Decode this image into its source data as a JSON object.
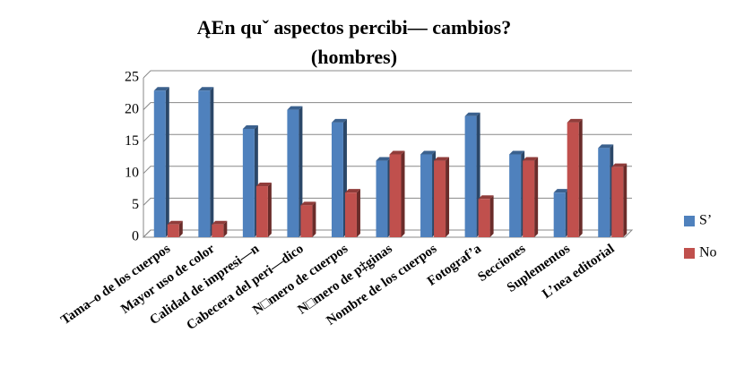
{
  "chart_data": {
    "type": "bar",
    "title": "ĄEn quˇ aspectos percibi— cambios?",
    "subtitle": "(hombres)",
    "categories": [
      "Tama–o de los cuerpos",
      "Mayor uso de color",
      "Calidad de impresi—n",
      "Cabecera del peri—dico",
      "N□mero de cuerpos",
      "N□mero de p‡ginas",
      "Nombre de los cuerpos",
      "Fotograf’a",
      "Secciones",
      "Suplementos",
      "L’nea editorial"
    ],
    "series": [
      {
        "name": "S’",
        "color": "#4f81bd",
        "values": [
          23,
          23,
          17,
          20,
          18,
          12,
          13,
          19,
          13,
          7,
          14
        ]
      },
      {
        "name": "No",
        "color": "#c0504d",
        "values": [
          2,
          2,
          8,
          5,
          7,
          13,
          12,
          6,
          12,
          18,
          11
        ]
      }
    ],
    "ylim": [
      0,
      25
    ],
    "yticks": [
      0,
      5,
      10,
      15,
      20,
      25
    ],
    "grid": true,
    "legend": "right"
  }
}
